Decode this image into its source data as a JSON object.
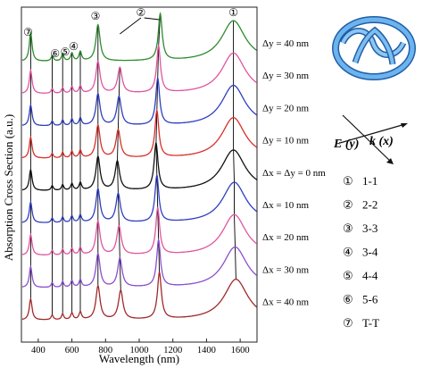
{
  "chart_data": {
    "type": "line",
    "xlabel": "Wavelength (nm)",
    "ylabel": "Absorption Cross Section (a.u.)",
    "xlim": [
      300,
      1700
    ],
    "x_ticks": [
      400,
      600,
      800,
      1000,
      1200,
      1400,
      1600
    ],
    "grid": false,
    "series": [
      {
        "name": "Δy = 40 nm",
        "color": "#2e8b2e",
        "peaks": [
          {
            "x": 355,
            "h": 0.62,
            "w": 10
          },
          {
            "x": 483,
            "h": 0.12,
            "w": 8
          },
          {
            "x": 545,
            "h": 0.16,
            "w": 8
          },
          {
            "x": 600,
            "h": 0.17,
            "w": 9
          },
          {
            "x": 650,
            "h": 0.2,
            "w": 9
          },
          {
            "x": 755,
            "h": 0.78,
            "w": 15
          },
          {
            "x": 1125,
            "h": 1.0,
            "w": 14
          },
          {
            "x": 1560,
            "h": 0.88,
            "w": 85
          }
        ]
      },
      {
        "name": "Δy = 30 nm",
        "color": "#e0559e",
        "peaks": [
          {
            "x": 355,
            "h": 0.5,
            "w": 10
          },
          {
            "x": 483,
            "h": 0.1,
            "w": 8
          },
          {
            "x": 545,
            "h": 0.12,
            "w": 8
          },
          {
            "x": 600,
            "h": 0.14,
            "w": 9
          },
          {
            "x": 650,
            "h": 0.16,
            "w": 9
          },
          {
            "x": 755,
            "h": 0.68,
            "w": 15
          },
          {
            "x": 885,
            "h": 0.55,
            "w": 16
          },
          {
            "x": 1115,
            "h": 1.0,
            "w": 14
          },
          {
            "x": 1560,
            "h": 0.88,
            "w": 85
          }
        ]
      },
      {
        "name": "Δy = 20 nm",
        "color": "#2e3fc0",
        "peaks": [
          {
            "x": 355,
            "h": 0.45,
            "w": 10
          },
          {
            "x": 483,
            "h": 0.1,
            "w": 8
          },
          {
            "x": 545,
            "h": 0.12,
            "w": 8
          },
          {
            "x": 600,
            "h": 0.14,
            "w": 9
          },
          {
            "x": 650,
            "h": 0.16,
            "w": 9
          },
          {
            "x": 755,
            "h": 0.68,
            "w": 15
          },
          {
            "x": 880,
            "h": 0.62,
            "w": 16
          },
          {
            "x": 1110,
            "h": 1.0,
            "w": 14
          },
          {
            "x": 1560,
            "h": 0.88,
            "w": 85
          }
        ]
      },
      {
        "name": "Δy = 10 nm",
        "color": "#d6302a",
        "peaks": [
          {
            "x": 355,
            "h": 0.45,
            "w": 10
          },
          {
            "x": 483,
            "h": 0.1,
            "w": 8
          },
          {
            "x": 545,
            "h": 0.12,
            "w": 8
          },
          {
            "x": 600,
            "h": 0.14,
            "w": 9
          },
          {
            "x": 650,
            "h": 0.16,
            "w": 9
          },
          {
            "x": 755,
            "h": 0.7,
            "w": 15
          },
          {
            "x": 875,
            "h": 0.6,
            "w": 16
          },
          {
            "x": 1105,
            "h": 1.0,
            "w": 14
          },
          {
            "x": 1560,
            "h": 0.88,
            "w": 85
          }
        ]
      },
      {
        "name": "Δx = Δy = 0 nm",
        "color": "#111111",
        "peaks": [
          {
            "x": 355,
            "h": 0.45,
            "w": 10
          },
          {
            "x": 483,
            "h": 0.1,
            "w": 8
          },
          {
            "x": 545,
            "h": 0.12,
            "w": 8
          },
          {
            "x": 600,
            "h": 0.14,
            "w": 9
          },
          {
            "x": 650,
            "h": 0.16,
            "w": 9
          },
          {
            "x": 755,
            "h": 0.72,
            "w": 15
          },
          {
            "x": 870,
            "h": 0.62,
            "w": 16
          },
          {
            "x": 1100,
            "h": 1.0,
            "w": 14
          },
          {
            "x": 1560,
            "h": 0.88,
            "w": 85
          }
        ]
      },
      {
        "name": "Δx = 10 nm",
        "color": "#2e3fc0",
        "peaks": [
          {
            "x": 355,
            "h": 0.45,
            "w": 10
          },
          {
            "x": 483,
            "h": 0.1,
            "w": 8
          },
          {
            "x": 545,
            "h": 0.12,
            "w": 8
          },
          {
            "x": 600,
            "h": 0.14,
            "w": 9
          },
          {
            "x": 650,
            "h": 0.16,
            "w": 9
          },
          {
            "x": 755,
            "h": 0.72,
            "w": 15
          },
          {
            "x": 875,
            "h": 0.62,
            "w": 16
          },
          {
            "x": 1105,
            "h": 1.0,
            "w": 14
          },
          {
            "x": 1565,
            "h": 0.88,
            "w": 85
          }
        ]
      },
      {
        "name": "Δx = 20 nm",
        "color": "#e0559e",
        "peaks": [
          {
            "x": 355,
            "h": 0.45,
            "w": 10
          },
          {
            "x": 483,
            "h": 0.1,
            "w": 8
          },
          {
            "x": 545,
            "h": 0.12,
            "w": 8
          },
          {
            "x": 600,
            "h": 0.14,
            "w": 9
          },
          {
            "x": 650,
            "h": 0.16,
            "w": 9
          },
          {
            "x": 755,
            "h": 0.72,
            "w": 15
          },
          {
            "x": 880,
            "h": 0.62,
            "w": 16
          },
          {
            "x": 1110,
            "h": 1.0,
            "w": 14
          },
          {
            "x": 1565,
            "h": 0.88,
            "w": 85
          }
        ]
      },
      {
        "name": "Δx = 30 nm",
        "color": "#8a4fd0",
        "peaks": [
          {
            "x": 355,
            "h": 0.45,
            "w": 10
          },
          {
            "x": 483,
            "h": 0.1,
            "w": 8
          },
          {
            "x": 545,
            "h": 0.12,
            "w": 8
          },
          {
            "x": 600,
            "h": 0.14,
            "w": 9
          },
          {
            "x": 650,
            "h": 0.16,
            "w": 9
          },
          {
            "x": 755,
            "h": 0.72,
            "w": 15
          },
          {
            "x": 885,
            "h": 0.62,
            "w": 16
          },
          {
            "x": 1115,
            "h": 1.0,
            "w": 14
          },
          {
            "x": 1570,
            "h": 0.88,
            "w": 85
          }
        ]
      },
      {
        "name": "Δx = 40 nm",
        "color": "#a0282a",
        "peaks": [
          {
            "x": 355,
            "h": 0.45,
            "w": 10
          },
          {
            "x": 483,
            "h": 0.1,
            "w": 8
          },
          {
            "x": 545,
            "h": 0.12,
            "w": 8
          },
          {
            "x": 600,
            "h": 0.14,
            "w": 9
          },
          {
            "x": 650,
            "h": 0.16,
            "w": 9
          },
          {
            "x": 755,
            "h": 0.72,
            "w": 15
          },
          {
            "x": 890,
            "h": 0.62,
            "w": 16
          },
          {
            "x": 1120,
            "h": 1.0,
            "w": 14
          },
          {
            "x": 1575,
            "h": 0.88,
            "w": 85
          }
        ]
      }
    ],
    "mode_markers": [
      {
        "symbol": "①",
        "x": 1560
      },
      {
        "symbol": "②",
        "x": 1125
      },
      {
        "symbol": "③",
        "x": 755
      },
      {
        "symbol": "④",
        "x": 650
      },
      {
        "symbol": "⑤",
        "x": 600
      },
      {
        "symbol": "⑥",
        "x": 545
      },
      {
        "symbol": "⑦",
        "x": 355
      }
    ],
    "mode_legend": [
      {
        "symbol": "①",
        "label": "1-1"
      },
      {
        "symbol": "②",
        "label": "2-2"
      },
      {
        "symbol": "③",
        "label": "3-3"
      },
      {
        "symbol": "④",
        "label": "3-4"
      },
      {
        "symbol": "⑤",
        "label": "4-4"
      },
      {
        "symbol": "⑥",
        "label": "5-6"
      },
      {
        "symbol": "⑦",
        "label": "T-T"
      }
    ],
    "polarization": {
      "k_label": "k (x)",
      "e_label": "E (y)"
    }
  },
  "colors": {
    "ring": "#5aa7e8",
    "ring_dark": "#1f5fa8"
  }
}
